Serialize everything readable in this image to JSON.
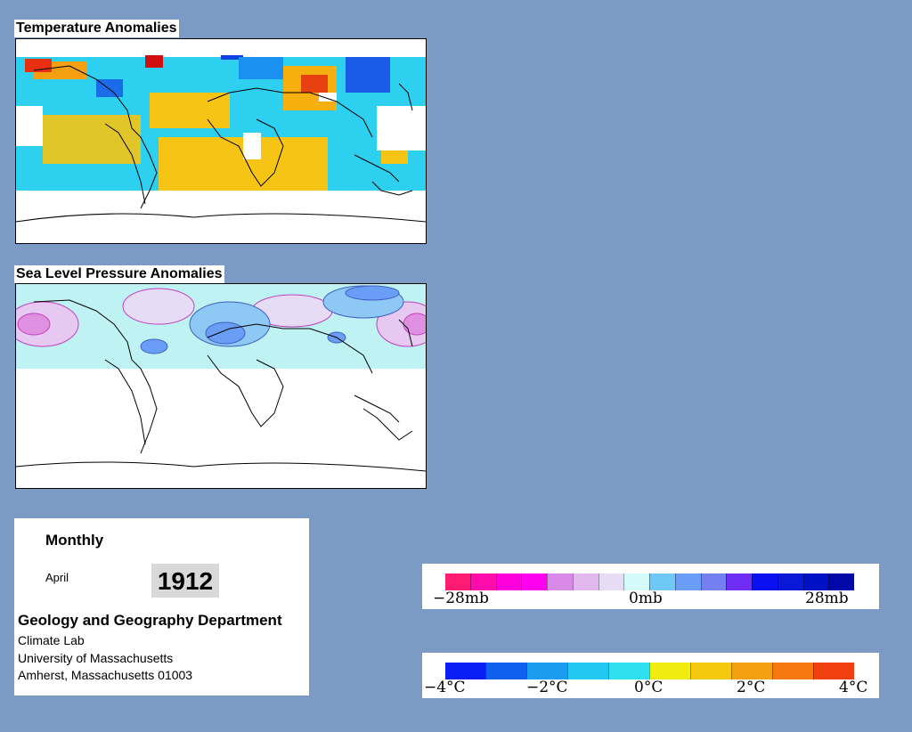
{
  "temperature_panel": {
    "title": "Temperature Anomalies"
  },
  "pressure_panel": {
    "title": "Sea Level Pressure Anomalies"
  },
  "info": {
    "frequency": "Monthly",
    "month": "April",
    "year": "1912",
    "department": "Geology and Geography Department",
    "lab": "Climate Lab",
    "university": "University of Massachusetts",
    "address": "Amherst, Massachusetts 01003"
  },
  "pressure_legend": {
    "min_label": "−28mb",
    "mid_label": "0mb",
    "max_label": "28mb",
    "colors": [
      "#ff1a72",
      "#ff0dac",
      "#ff00dd",
      "#ff00f0",
      "#d98ae8",
      "#e2b8ef",
      "#e6dcf6",
      "#d4fafa",
      "#6fc8f5",
      "#6a9ef6",
      "#7480f0",
      "#6f2cf5",
      "#0a10f0",
      "#0a18d8",
      "#0010c4",
      "#0008a8"
    ]
  },
  "temperature_legend": {
    "labels": [
      "−4°C",
      "−2°C",
      "0°C",
      "2°C",
      "4°C"
    ],
    "colors": [
      "#0a1ef5",
      "#1060f0",
      "#1a9cf0",
      "#23c8f0",
      "#2ee0f0",
      "#f0ec10",
      "#f5c810",
      "#f5a010",
      "#f57810",
      "#f04010"
    ]
  }
}
